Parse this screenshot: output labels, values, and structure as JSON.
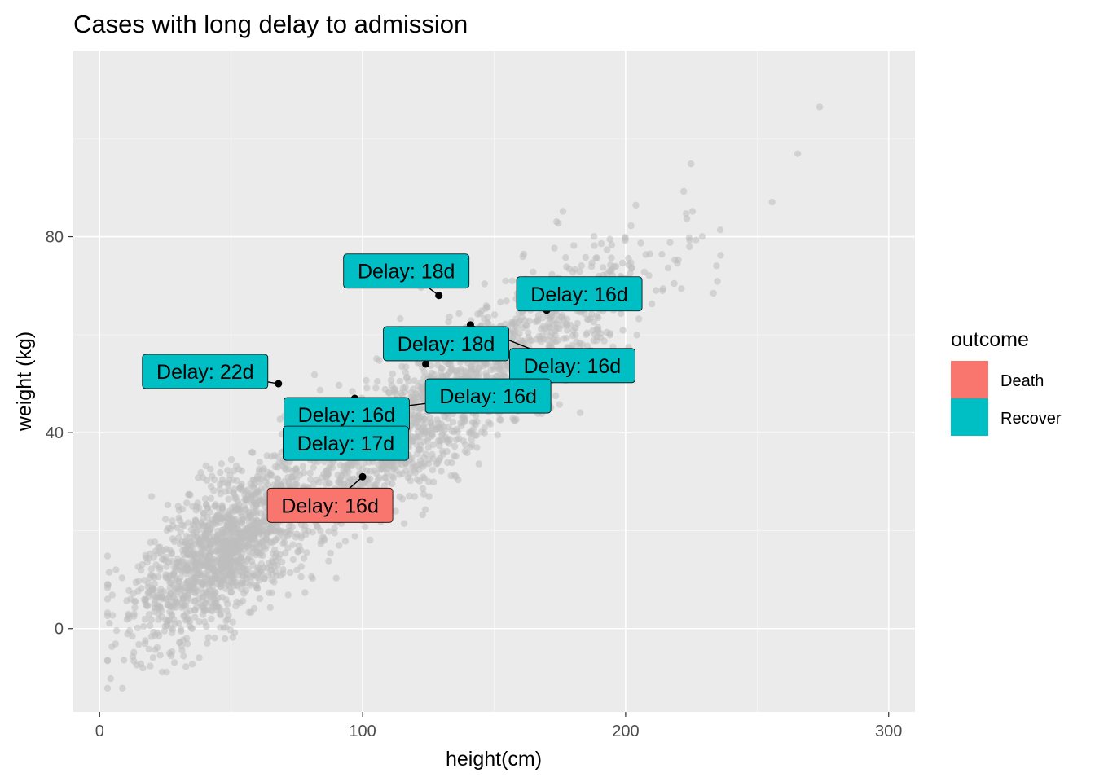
{
  "chart_data": {
    "type": "scatter",
    "title": "Cases with long delay to admission",
    "xlabel": "height(cm)",
    "ylabel": "weight (kg)",
    "xlim": [
      -10,
      310
    ],
    "ylim": [
      -17,
      118
    ],
    "x_ticks": [
      0,
      100,
      200,
      300
    ],
    "y_ticks": [
      0,
      40,
      80
    ],
    "x_tick_labels": [
      "0",
      "100",
      "200",
      "300"
    ],
    "y_tick_labels": [
      "0",
      "40",
      "80"
    ],
    "grid": true,
    "legend": {
      "title": "outcome",
      "position": "right",
      "entries": [
        {
          "name": "Death",
          "color": "#F8766D"
        },
        {
          "name": "Recover",
          "color": "#00BFC4"
        }
      ]
    },
    "background_points": {
      "description_color": "#bdbdbd",
      "count": 3000,
      "slope_kg_per_cm": 0.36,
      "intercept_kg": -1,
      "x_range": [
        3,
        295
      ]
    },
    "highlighted": [
      {
        "x": 129,
        "y": 68,
        "label": "Delay: 18d",
        "outcome": "Recover"
      },
      {
        "x": 170,
        "y": 65,
        "label": "Delay: 16d",
        "outcome": "Recover"
      },
      {
        "x": 141,
        "y": 62,
        "label": "Delay: 16d",
        "outcome": "Recover"
      },
      {
        "x": 124,
        "y": 54,
        "label": "Delay: 18d",
        "outcome": "Recover"
      },
      {
        "x": 68,
        "y": 50,
        "label": "Delay: 22d",
        "outcome": "Recover"
      },
      {
        "x": 97,
        "y": 47,
        "label": "Delay: 16d",
        "outcome": "Recover"
      },
      {
        "x": 109,
        "y": 45,
        "label": "Delay: 16d",
        "outcome": "Recover"
      },
      {
        "x": 106,
        "y": 44,
        "label": "Delay: 17d",
        "outcome": "Recover"
      },
      {
        "x": 100,
        "y": 31,
        "label": "Delay: 16d",
        "outcome": "Death"
      }
    ]
  }
}
